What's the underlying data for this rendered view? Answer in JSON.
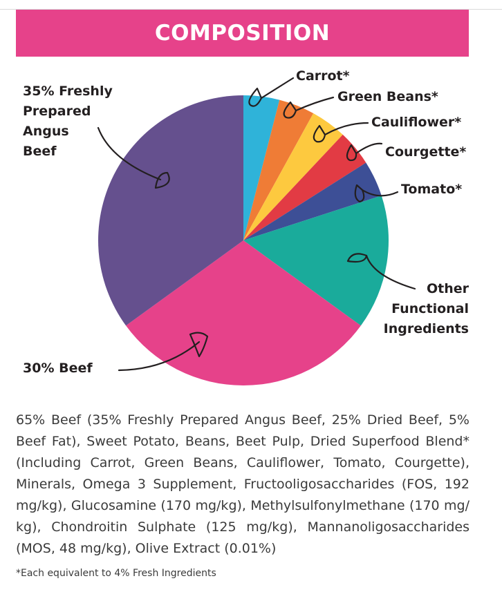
{
  "banner": {
    "title": "COMPOSITION",
    "color": "#e6428a"
  },
  "chart_data": {
    "type": "pie",
    "title": "COMPOSITION",
    "slices": [
      {
        "label": "Carrot*",
        "value": 4,
        "color": "#2fb3d9"
      },
      {
        "label": "Green Beans*",
        "value": 4,
        "color": "#ef7c36"
      },
      {
        "label": "Cauliflower*",
        "value": 4,
        "color": "#fdc93f"
      },
      {
        "label": "Courgette*",
        "value": 4,
        "color": "#e23b44"
      },
      {
        "label": "Tomato*",
        "value": 4,
        "color": "#3d4f96"
      },
      {
        "label": "Other Functional Ingredients",
        "value": 15,
        "color": "#1aab9b"
      },
      {
        "label": "30% Beef",
        "value": 30,
        "color": "#e6428a"
      },
      {
        "label": "35% Freshly Prepared Angus Beef",
        "value": 35,
        "color": "#65508e"
      }
    ]
  },
  "labels": {
    "carrot": "Carrot*",
    "green_beans": "Green Beans*",
    "cauliflower": "Cauliflower*",
    "courgette": "Courgette*",
    "tomato": "Tomato*",
    "other": [
      "Other",
      "Functional",
      "Ingredients"
    ],
    "angus": [
      "35% Freshly",
      "Prepared",
      "Angus",
      "Beef"
    ],
    "beef": "30% Beef"
  },
  "description": "65% Beef (35% Freshly Prepared Angus Beef, 25% Dried Beef, 5% Beef Fat), Sweet Potato, Beans, Beet Pulp, Dried Superfood Blend* (Including Carrot, Green Beans, Cauliflower, Tomato, Courgette), Minerals, Omega 3 Supplement, Fructooligosaccharides (FOS, 192 mg/kg), Glucosamine (170 mg/kg), Methylsulfonylmethane (170 mg/ kg), Chondroitin Sulphate (125 mg/kg), Mannanoligosaccharides (MOS, 48 mg/kg), Olive Extract (0.01%)",
  "footnote": "*Each equivalent to 4% Fresh Ingredients"
}
